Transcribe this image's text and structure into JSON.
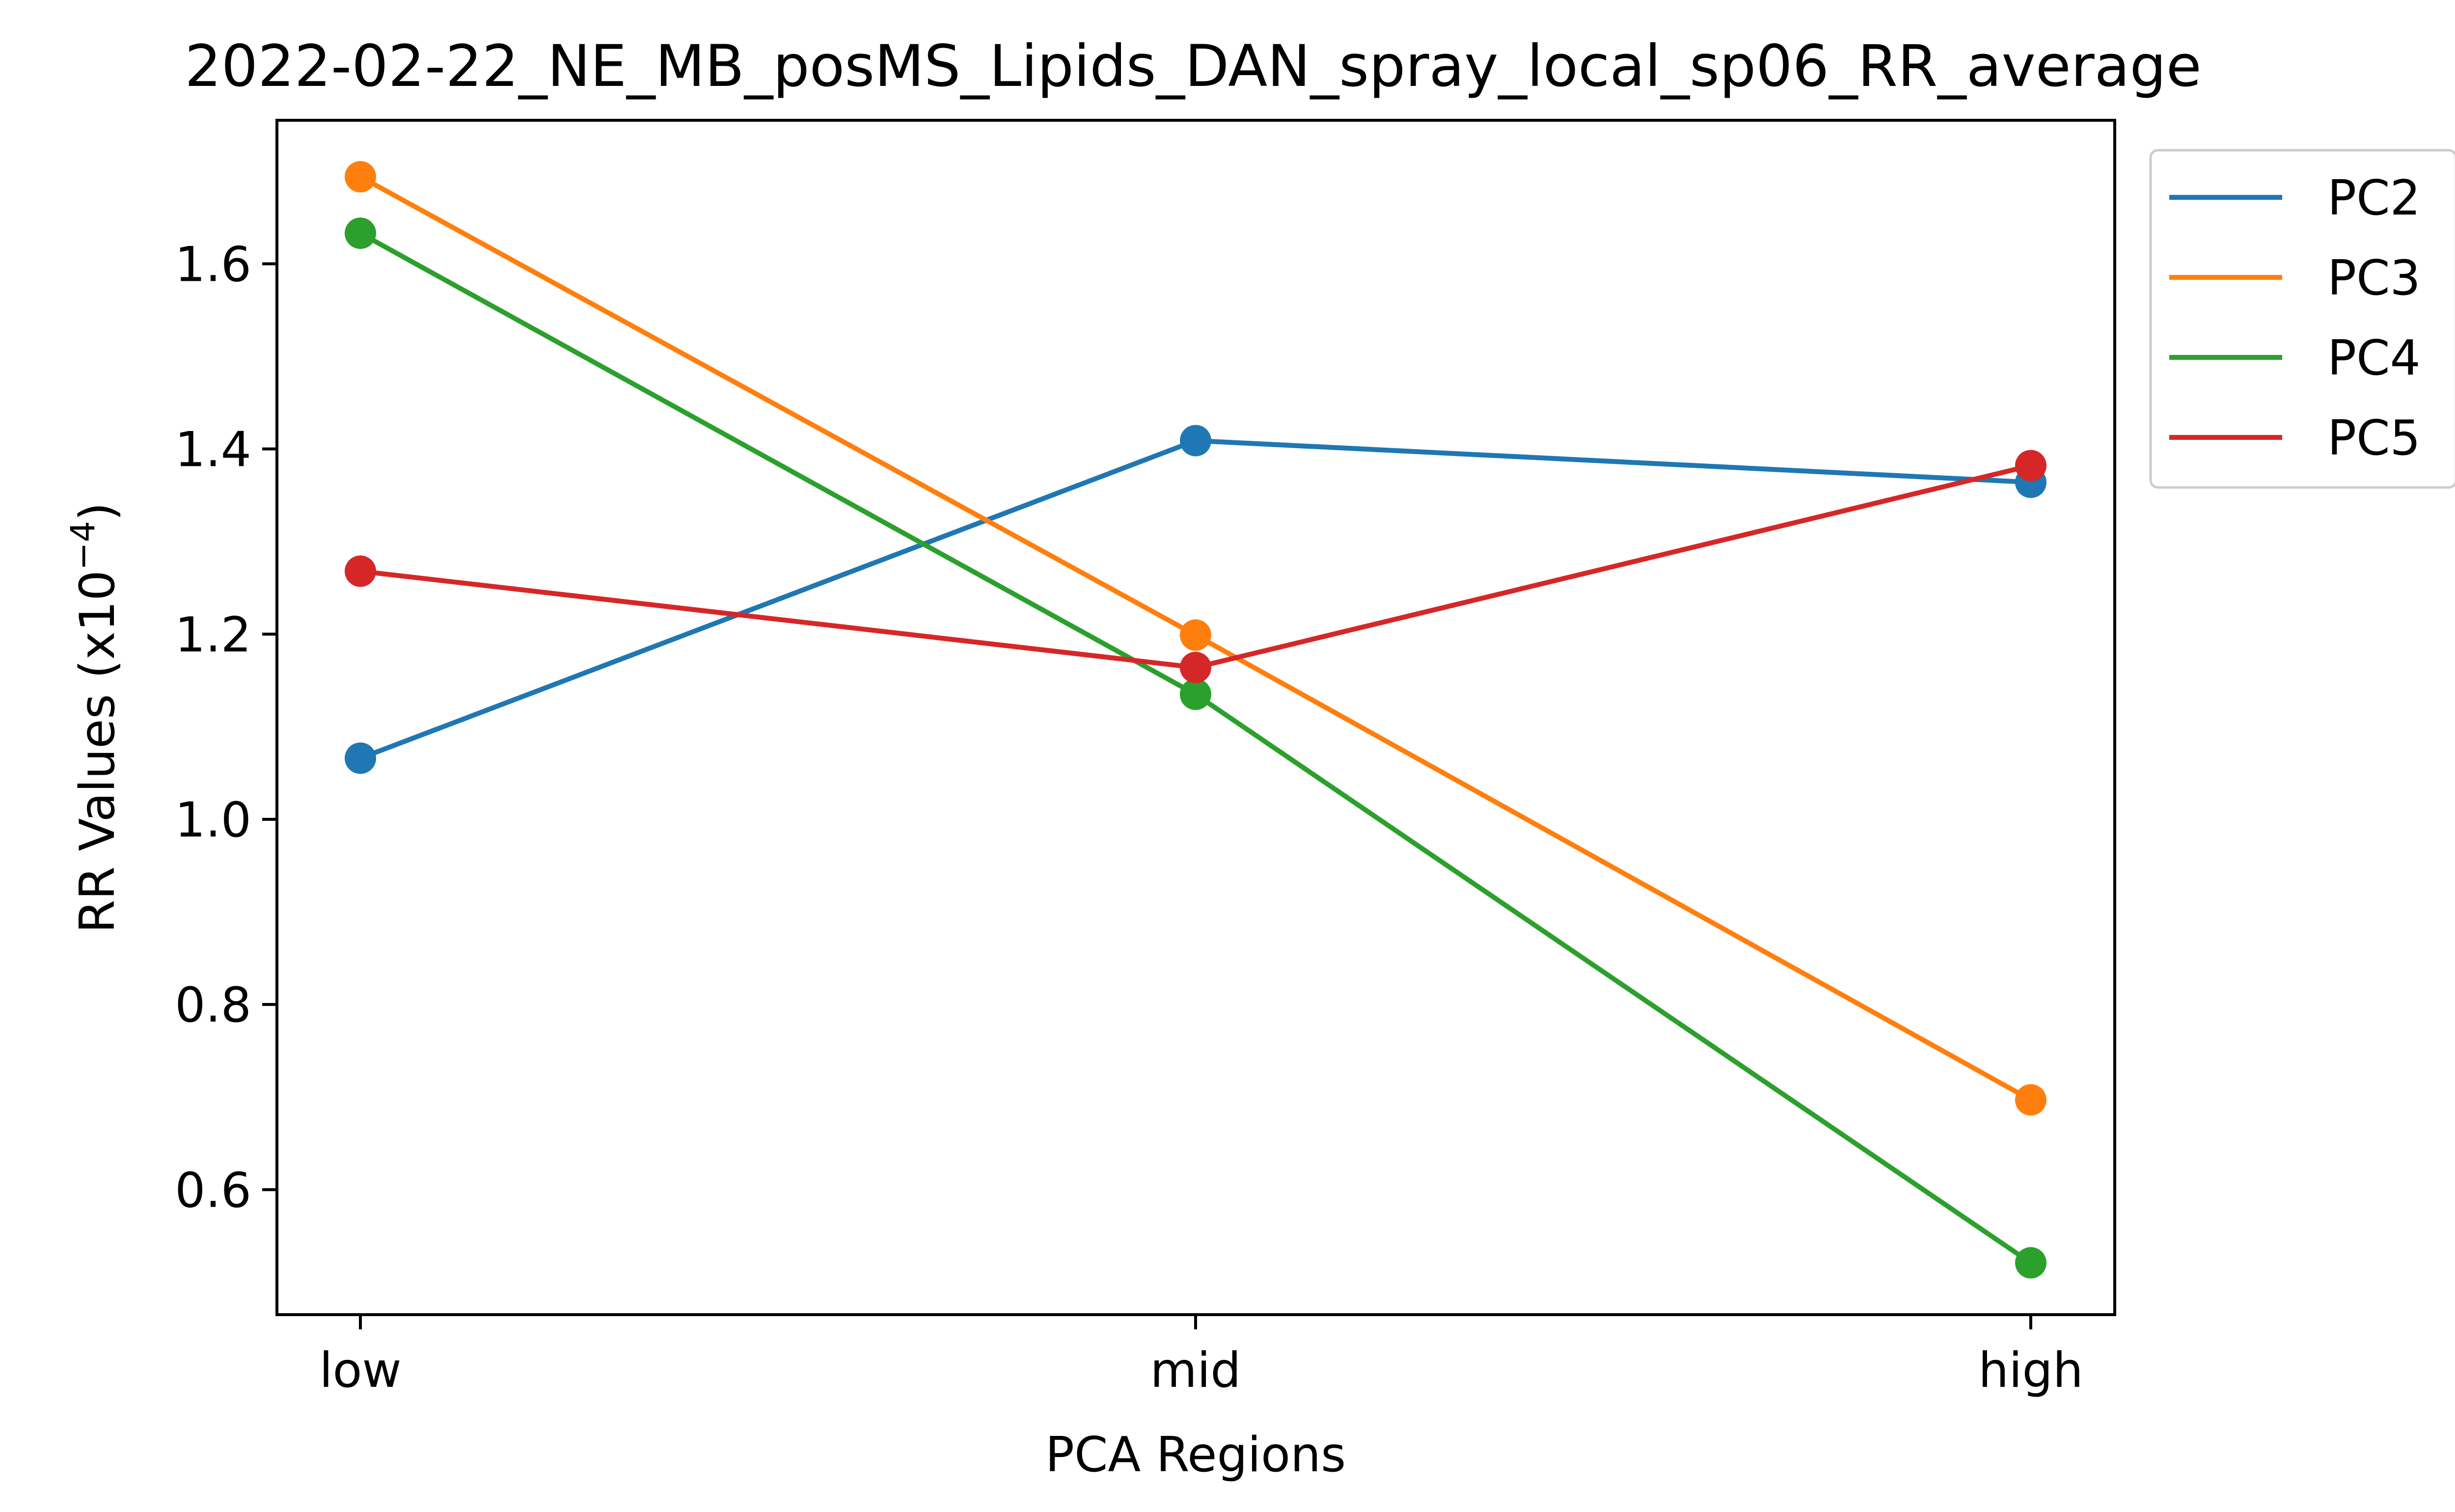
{
  "chart_data": {
    "type": "line",
    "title": "2022-02-22_NE_MB_posMS_Lipids_DAN_spray_local_sp06_RR_average",
    "xlabel": "PCA Regions",
    "ylabel": "RR Values (x10",
    "ylabel_exponent": "−4",
    "ylabel_close": ")",
    "categories": [
      "low",
      "mid",
      "high"
    ],
    "ylim": [
      0.465,
      1.755
    ],
    "yticks": [
      0.6,
      0.8,
      1.0,
      1.2,
      1.4,
      1.6
    ],
    "ytick_labels": [
      "0.6",
      "0.8",
      "1.0",
      "1.2",
      "1.4",
      "1.6"
    ],
    "grid": false,
    "legend_position": "outside upper right",
    "series": [
      {
        "name": "PC2",
        "color": "#1f77b4",
        "values": [
          1.066,
          1.409,
          1.364
        ]
      },
      {
        "name": "PC3",
        "color": "#ff7f0e",
        "values": [
          1.694,
          1.199,
          0.697
        ]
      },
      {
        "name": "PC4",
        "color": "#2ca02c",
        "values": [
          1.633,
          1.135,
          0.521
        ]
      },
      {
        "name": "PC5",
        "color": "#d62728",
        "values": [
          1.268,
          1.164,
          1.382
        ]
      }
    ]
  }
}
